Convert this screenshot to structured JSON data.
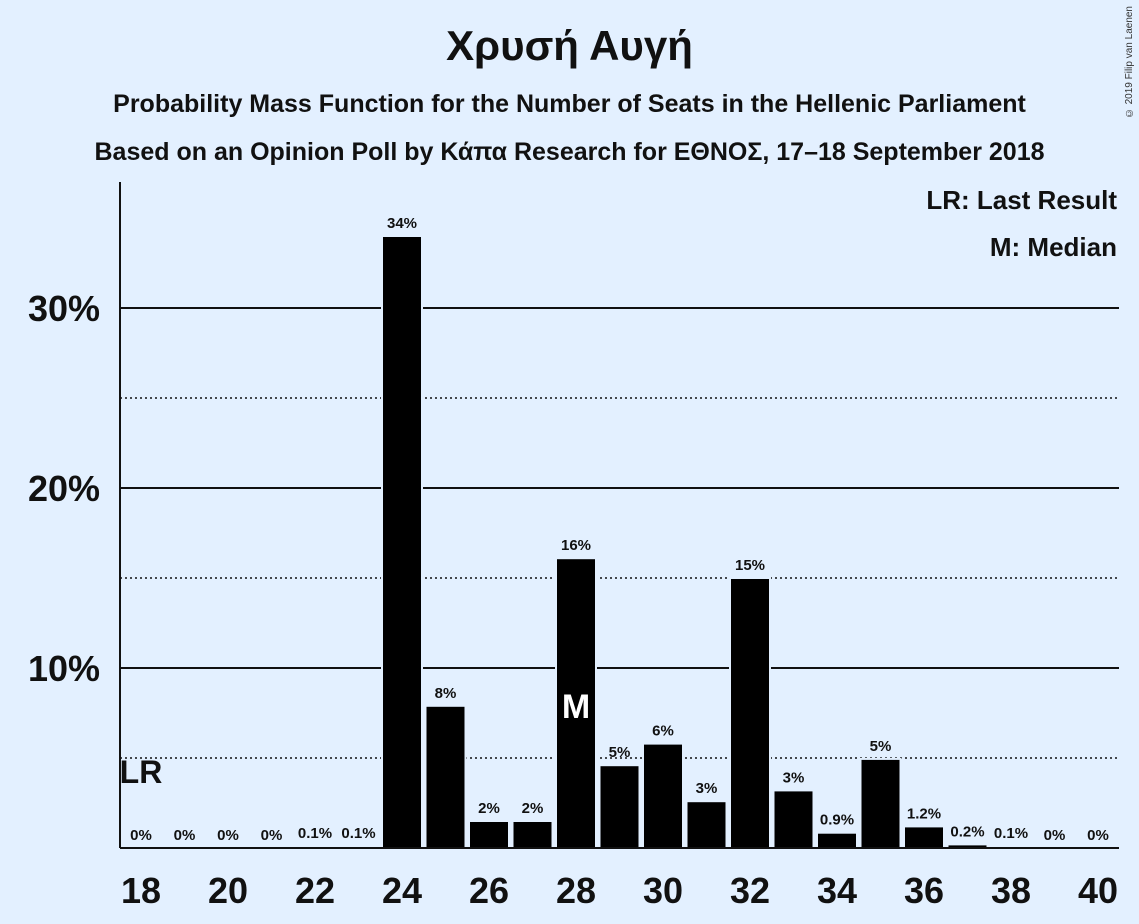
{
  "title": "Χρυσή Αυγή",
  "subtitle_1": "Probability Mass Function for the Number of Seats in the Hellenic Parliament",
  "subtitle_2": "Based on an Opinion Poll by Κάπα Research for ΕΘΝΟΣ, 17–18 September 2018",
  "copyright": "© 2019 Filip van Laenen",
  "legend": {
    "last_result": "LR: Last Result",
    "median": "M: Median"
  },
  "markers": {
    "last_result_label": "LR",
    "last_result_seat": 18,
    "median_label": "M",
    "median_seat": 28
  },
  "colors": {
    "background": "#e3f0ff",
    "bar": "#000000",
    "text": "#111111"
  },
  "chart_data": {
    "type": "bar",
    "x": [
      18,
      19,
      20,
      21,
      22,
      23,
      24,
      25,
      26,
      27,
      28,
      29,
      30,
      31,
      32,
      33,
      34,
      35,
      36,
      37,
      38,
      39,
      40
    ],
    "values": [
      0,
      0,
      0,
      0,
      0.1,
      0.1,
      34,
      7.9,
      1.5,
      1.5,
      16.1,
      4.6,
      5.8,
      2.6,
      15,
      3.2,
      0.85,
      4.95,
      1.2,
      0.2,
      0.1,
      0,
      0
    ],
    "data_labels": [
      "0%",
      "0%",
      "0%",
      "0%",
      "0.1%",
      "0.1%",
      "34%",
      "8%",
      "2%",
      "2%",
      "16%",
      "5%",
      "6%",
      "3%",
      "15%",
      "3%",
      "0.9%",
      "5%",
      "1.2%",
      "0.2%",
      "0.1%",
      "0%",
      "0%"
    ],
    "x_ticks": [
      18,
      20,
      22,
      24,
      26,
      28,
      30,
      32,
      34,
      36,
      38,
      40
    ],
    "y_ticks": [
      {
        "value": 10,
        "label": "10%"
      },
      {
        "value": 20,
        "label": "20%"
      },
      {
        "value": 30,
        "label": "30%"
      }
    ],
    "y_minor_ticks": [
      5,
      15,
      25
    ],
    "ylim": [
      0,
      37
    ],
    "xlabel": "",
    "ylabel": "",
    "grid": true,
    "legend_position": "top-right"
  }
}
